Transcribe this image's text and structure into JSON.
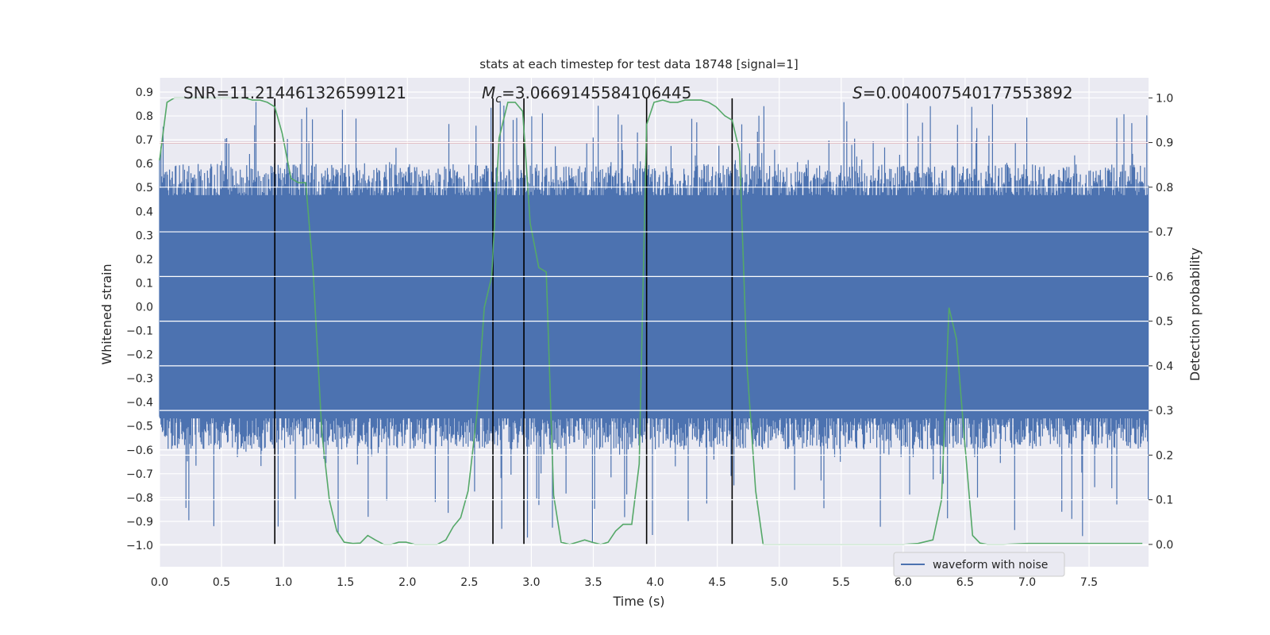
{
  "chart_data": {
    "type": "line",
    "title": "stats at each timestep for test data 18748 [signal=1]",
    "xlabel": "Time (s)",
    "ylabel": "Whitened strain",
    "y2label": "Detection probability",
    "xlim": [
      0.0,
      7.98
    ],
    "ylim": [
      -1.09,
      0.96
    ],
    "y2lim": [
      -0.05,
      1.045
    ],
    "xticks": [
      "0.0",
      "0.5",
      "1.0",
      "1.5",
      "2.0",
      "2.5",
      "3.0",
      "3.5",
      "4.0",
      "4.5",
      "5.0",
      "5.5",
      "6.0",
      "6.5",
      "7.0",
      "7.5"
    ],
    "yticks": [
      "0.9",
      "0.8",
      "0.7",
      "0.6",
      "0.5",
      "0.4",
      "0.3",
      "0.2",
      "0.1",
      "0.0",
      "-0.1",
      "-0.2",
      "-0.3",
      "-0.4",
      "-0.5",
      "-0.6",
      "-0.7",
      "-0.8",
      "-0.9",
      "-1.0"
    ],
    "y2ticks": [
      "1.0",
      "0.9",
      "0.8",
      "0.7",
      "0.6",
      "0.5",
      "0.4",
      "0.3",
      "0.2",
      "0.1",
      "0.0"
    ],
    "annotations": {
      "snr": "SNR=11.214461326599121",
      "mc_symbol": "M",
      "mc_sub": "c",
      "mc_value": "=3.0669145584106445",
      "s_symbol": "S",
      "s_value": "=0.004007540177553892"
    },
    "threshold": {
      "value": 0.9,
      "axis": "y2",
      "color": "#c44e52"
    },
    "event_lines": [
      0.93,
      2.69,
      2.94,
      3.93,
      4.62
    ],
    "legend": {
      "label": "waveform with noise",
      "location": "lower-right"
    },
    "series": [
      {
        "name": "waveform with noise",
        "axis": "y",
        "color": "#4c72b0",
        "kind": "noise",
        "x_range": [
          0.0,
          7.98
        ],
        "core_range": [
          -0.52,
          0.52
        ],
        "peak_range": [
          -1.0,
          0.86
        ]
      },
      {
        "name": "detection probability",
        "axis": "y2",
        "color": "#55a868",
        "x": [
          0.0,
          0.06,
          0.12,
          0.19,
          0.25,
          0.31,
          0.37,
          0.44,
          0.5,
          0.56,
          0.62,
          0.69,
          0.75,
          0.81,
          0.87,
          0.93,
          0.99,
          1.06,
          1.12,
          1.18,
          1.24,
          1.31,
          1.37,
          1.43,
          1.49,
          1.56,
          1.62,
          1.68,
          1.74,
          1.81,
          1.87,
          1.93,
          1.99,
          2.06,
          2.12,
          2.18,
          2.24,
          2.31,
          2.37,
          2.43,
          2.49,
          2.56,
          2.62,
          2.68,
          2.74,
          2.81,
          2.87,
          2.93,
          2.99,
          3.06,
          3.12,
          3.18,
          3.24,
          3.31,
          3.37,
          3.43,
          3.49,
          3.56,
          3.62,
          3.68,
          3.74,
          3.81,
          3.87,
          3.93,
          3.99,
          4.06,
          4.12,
          4.18,
          4.24,
          4.31,
          4.37,
          4.43,
          4.49,
          4.56,
          4.62,
          4.68,
          4.74,
          4.81,
          4.87,
          4.93,
          4.99,
          5.06,
          5.5,
          6.0,
          6.12,
          6.24,
          6.31,
          6.37,
          6.43,
          6.49,
          6.56,
          6.62,
          6.68,
          6.74,
          6.81,
          7.0,
          7.5,
          7.81,
          7.93
        ],
        "y": [
          0.86,
          0.99,
          1.0,
          1.0,
          1.0,
          1.0,
          1.0,
          1.0,
          1.0,
          1.0,
          1.0,
          1.0,
          0.995,
          0.995,
          0.99,
          0.98,
          0.92,
          0.82,
          0.81,
          0.81,
          0.61,
          0.25,
          0.1,
          0.03,
          0.005,
          0.002,
          0.003,
          0.02,
          0.01,
          0.0,
          0.0,
          0.005,
          0.005,
          0.0,
          0.0,
          0.0,
          0.0,
          0.01,
          0.04,
          0.06,
          0.12,
          0.29,
          0.53,
          0.6,
          0.91,
          0.99,
          0.99,
          0.97,
          0.72,
          0.62,
          0.61,
          0.11,
          0.005,
          0.0,
          0.005,
          0.01,
          0.005,
          0.0,
          0.005,
          0.03,
          0.045,
          0.045,
          0.18,
          0.94,
          0.99,
          0.995,
          0.99,
          0.99,
          0.995,
          0.995,
          0.995,
          0.99,
          0.98,
          0.96,
          0.95,
          0.88,
          0.4,
          0.12,
          0.0,
          0.0,
          0.0,
          0.0,
          0.0,
          0.0,
          0.002,
          0.01,
          0.1,
          0.53,
          0.46,
          0.25,
          0.02,
          0.003,
          0.0,
          0.0,
          0.0,
          0.002,
          0.002,
          0.002,
          0.002
        ]
      }
    ]
  }
}
